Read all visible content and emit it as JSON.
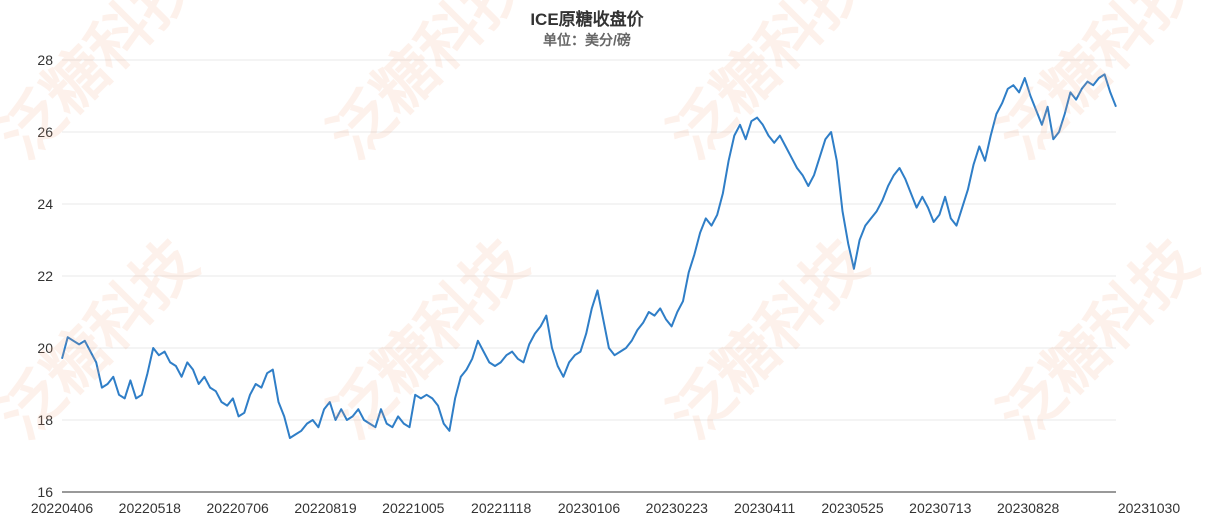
{
  "chart_data": {
    "type": "line",
    "title": "ICE原糖收盘价",
    "subtitle": "单位：美分/磅",
    "xlabel": "",
    "ylabel": "",
    "ylim": [
      16,
      28
    ],
    "yticks": [
      16,
      18,
      20,
      22,
      24,
      26,
      28
    ],
    "grid": true,
    "x_tick_labels": [
      "20220406",
      "20220518",
      "20220706",
      "20220819",
      "20221005",
      "20221118",
      "20230106",
      "20230223",
      "20230411",
      "20230525",
      "20230713",
      "20230828",
      "20231030"
    ],
    "line_color": "#2f7ec7",
    "series": [
      {
        "values": [
          19.7,
          20.3,
          20.2,
          20.1,
          20.2,
          19.9,
          19.6,
          18.9,
          19.0,
          19.2,
          18.7,
          18.6,
          19.1,
          18.6,
          18.7,
          19.3,
          20.0,
          19.8,
          19.9,
          19.6,
          19.5,
          19.2,
          19.6,
          19.4,
          19.0,
          19.2,
          18.9,
          18.8,
          18.5,
          18.4,
          18.6,
          18.1,
          18.2,
          18.7,
          19.0,
          18.9,
          19.3,
          19.4,
          18.5,
          18.1,
          17.5,
          17.6,
          17.7,
          17.9,
          18.0,
          17.8,
          18.3,
          18.5,
          18.0,
          18.3,
          18.0,
          18.1,
          18.3,
          18.0,
          17.9,
          17.8,
          18.3,
          17.9,
          17.8,
          18.1,
          17.9,
          17.8,
          18.7,
          18.6,
          18.7,
          18.6,
          18.4,
          17.9,
          17.7,
          18.6,
          19.2,
          19.4,
          19.7,
          20.2,
          19.9,
          19.6,
          19.5,
          19.6,
          19.8,
          19.9,
          19.7,
          19.6,
          20.1,
          20.4,
          20.6,
          20.9,
          20.0,
          19.5,
          19.2,
          19.6,
          19.8,
          19.9,
          20.4,
          21.1,
          21.6,
          20.8,
          20.0,
          19.8,
          19.9,
          20.0,
          20.2,
          20.5,
          20.7,
          21.0,
          20.9,
          21.1,
          20.8,
          20.6,
          21.0,
          21.3,
          22.1,
          22.6,
          23.2,
          23.6,
          23.4,
          23.7,
          24.3,
          25.2,
          25.9,
          26.2,
          25.8,
          26.3,
          26.4,
          26.2,
          25.9,
          25.7,
          25.9,
          25.6,
          25.3,
          25.0,
          24.8,
          24.5,
          24.8,
          25.3,
          25.8,
          26.0,
          25.2,
          23.8,
          22.9,
          22.2,
          23.0,
          23.4,
          23.6,
          23.8,
          24.1,
          24.5,
          24.8,
          25.0,
          24.7,
          24.3,
          23.9,
          24.2,
          23.9,
          23.5,
          23.7,
          24.2,
          23.6,
          23.4,
          23.9,
          24.4,
          25.1,
          25.6,
          25.2,
          25.9,
          26.5,
          26.8,
          27.2,
          27.3,
          27.1,
          27.5,
          27.0,
          26.6,
          26.2,
          26.7,
          25.8,
          26.0,
          26.5,
          27.1,
          26.9,
          27.2,
          27.4,
          27.3,
          27.5,
          27.6,
          27.1,
          26.7
        ]
      }
    ]
  },
  "watermark": "泛糖科技"
}
